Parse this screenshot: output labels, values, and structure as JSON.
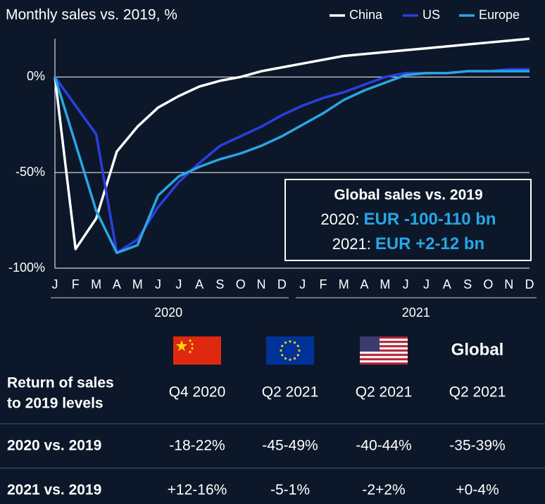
{
  "chart_data": {
    "type": "line",
    "title": "Monthly sales vs. 2019, %",
    "categories": [
      "J",
      "F",
      "M",
      "A",
      "M",
      "J",
      "J",
      "A",
      "S",
      "O",
      "N",
      "D",
      "J",
      "F",
      "M",
      "A",
      "M",
      "J",
      "J",
      "A",
      "S",
      "O",
      "N",
      "D"
    ],
    "year_labels": [
      "2020",
      "2021"
    ],
    "series": [
      {
        "name": "China",
        "color": "#ffffff",
        "values": [
          0,
          -90,
          -74,
          -39,
          -26,
          -16,
          -10,
          -5,
          -2,
          0,
          3,
          5,
          7,
          9,
          11,
          12,
          13,
          14,
          15,
          16,
          17,
          18,
          19,
          20
        ]
      },
      {
        "name": "US",
        "color": "#2b3fe0",
        "values": [
          0,
          -15,
          -30,
          -92,
          -85,
          -68,
          -55,
          -45,
          -36,
          -31,
          -26,
          -20,
          -15,
          -11,
          -8,
          -4,
          0,
          2,
          2,
          2,
          3,
          3,
          4,
          4
        ]
      },
      {
        "name": "Europe",
        "color": "#29a6e6",
        "values": [
          0,
          -35,
          -70,
          -92,
          -88,
          -62,
          -52,
          -47,
          -43,
          -40,
          -36,
          -31,
          -25,
          -19,
          -12,
          -7,
          -3,
          1,
          2,
          2,
          3,
          3,
          3,
          3
        ]
      }
    ],
    "ylim": [
      -100,
      20
    ],
    "yticks": [
      {
        "value": 0,
        "label": "0%"
      },
      {
        "value": -50,
        "label": "-50%"
      },
      {
        "value": -100,
        "label": "-100%"
      }
    ],
    "grid": true,
    "legend": "top-right",
    "annotation": {
      "title": "Global sales vs. 2019",
      "lines": [
        {
          "label": "2020:",
          "value": "EUR -100-110 bn"
        },
        {
          "label": "2021:",
          "value": "EUR +2-12 bn"
        }
      ]
    }
  },
  "table": {
    "header_label": [
      "Return of sales",
      "to 2019 levels"
    ],
    "global_label": "Global",
    "column_labels": [
      "Q4 2020",
      "Q2 2021",
      "Q2 2021",
      "Q2 2021"
    ],
    "rows": [
      {
        "label": "2020 vs. 2019",
        "cells": [
          "-18-22%",
          "-45-49%",
          "-40-44%",
          "-35-39%"
        ]
      },
      {
        "label": "2021 vs. 2019",
        "cells": [
          "+12-16%",
          "-5-1%",
          "-2+2%",
          "+0-4%"
        ]
      }
    ]
  }
}
